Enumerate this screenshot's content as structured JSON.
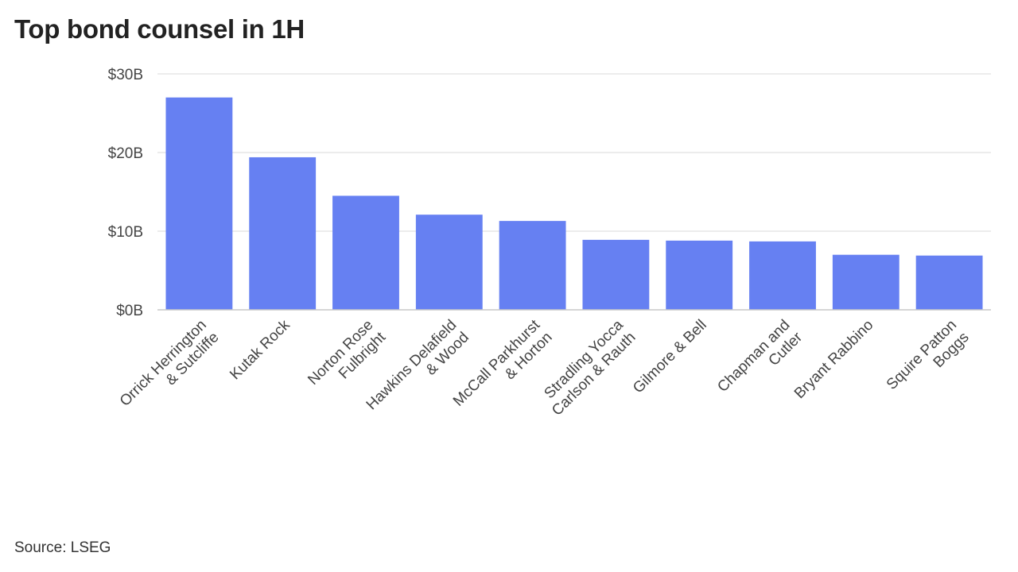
{
  "title": "Top bond counsel in 1H",
  "source": "Source: LSEG",
  "colors": {
    "bar": "#6680f2",
    "grid": "#e6e6e6",
    "axis": "#c8c8c8"
  },
  "chart_data": {
    "type": "bar",
    "title": "Top bond counsel in 1H",
    "xlabel": "",
    "ylabel": "",
    "categories": [
      [
        "Orrick Herrington",
        "& Sutcliffe"
      ],
      [
        "Kutak Rock"
      ],
      [
        "Norton Rose",
        "Fulbright"
      ],
      [
        "Hawkins Delafield",
        "& Wood"
      ],
      [
        "McCall Parkhurst",
        "& Horton"
      ],
      [
        "Stradling Yocca",
        "Carlson & Rauth"
      ],
      [
        "Gilmore & Bell"
      ],
      [
        "Chapman and",
        "Cutler"
      ],
      [
        "Bryant Rabbino"
      ],
      [
        "Squire Patton",
        "Boggs"
      ]
    ],
    "values": [
      27.0,
      19.4,
      14.5,
      12.1,
      11.3,
      8.9,
      8.8,
      8.7,
      7.0,
      6.9
    ],
    "unit": "$B",
    "ylim": [
      0,
      30
    ],
    "yticks": [
      0,
      10,
      20,
      30
    ],
    "ytick_labels": [
      "$0B",
      "$10B",
      "$20B",
      "$30B"
    ],
    "grid": true,
    "legend": "none"
  }
}
